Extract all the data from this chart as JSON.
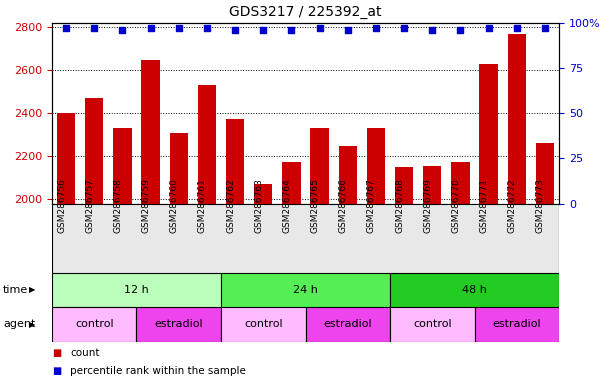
{
  "title": "GDS3217 / 225392_at",
  "samples": [
    "GSM286756",
    "GSM286757",
    "GSM286758",
    "GSM286759",
    "GSM286760",
    "GSM286761",
    "GSM286762",
    "GSM286763",
    "GSM286764",
    "GSM286765",
    "GSM286766",
    "GSM286767",
    "GSM286768",
    "GSM286769",
    "GSM286770",
    "GSM286771",
    "GSM286772",
    "GSM286773"
  ],
  "counts": [
    2400,
    2470,
    2330,
    2650,
    2310,
    2530,
    2375,
    2070,
    2175,
    2330,
    2250,
    2330,
    2150,
    2155,
    2175,
    2630,
    2770,
    2260
  ],
  "percentile_ranks": [
    97,
    97,
    96,
    97,
    97,
    97,
    96,
    96,
    96,
    97,
    96,
    97,
    97,
    96,
    96,
    97,
    97,
    97
  ],
  "ylim_left": [
    1980,
    2820
  ],
  "ylim_right": [
    0,
    100
  ],
  "yticks_left": [
    2000,
    2200,
    2400,
    2600,
    2800
  ],
  "yticks_right": [
    0,
    25,
    50,
    75,
    100
  ],
  "bar_color": "#cc0000",
  "dot_color": "#0000cc",
  "bg_color": "#ffffff",
  "plot_bg_color": "#ffffff",
  "time_groups": [
    {
      "label": "12 h",
      "start": 0,
      "end": 6,
      "color": "#bbffbb"
    },
    {
      "label": "24 h",
      "start": 6,
      "end": 12,
      "color": "#55ee55"
    },
    {
      "label": "48 h",
      "start": 12,
      "end": 18,
      "color": "#22cc22"
    }
  ],
  "agent_groups": [
    {
      "label": "control",
      "start": 0,
      "end": 3,
      "color": "#ffbbff"
    },
    {
      "label": "estradiol",
      "start": 3,
      "end": 6,
      "color": "#ee44ee"
    },
    {
      "label": "control",
      "start": 6,
      "end": 9,
      "color": "#ffbbff"
    },
    {
      "label": "estradiol",
      "start": 9,
      "end": 12,
      "color": "#ee44ee"
    },
    {
      "label": "control",
      "start": 12,
      "end": 15,
      "color": "#ffbbff"
    },
    {
      "label": "estradiol",
      "start": 15,
      "end": 18,
      "color": "#ee44ee"
    }
  ],
  "legend_count_color": "#cc0000",
  "legend_pct_color": "#0000cc",
  "title_fontsize": 10,
  "label_fontsize": 8,
  "tick_fontsize": 7,
  "row_label_fontsize": 8,
  "sample_fontsize": 6.5
}
